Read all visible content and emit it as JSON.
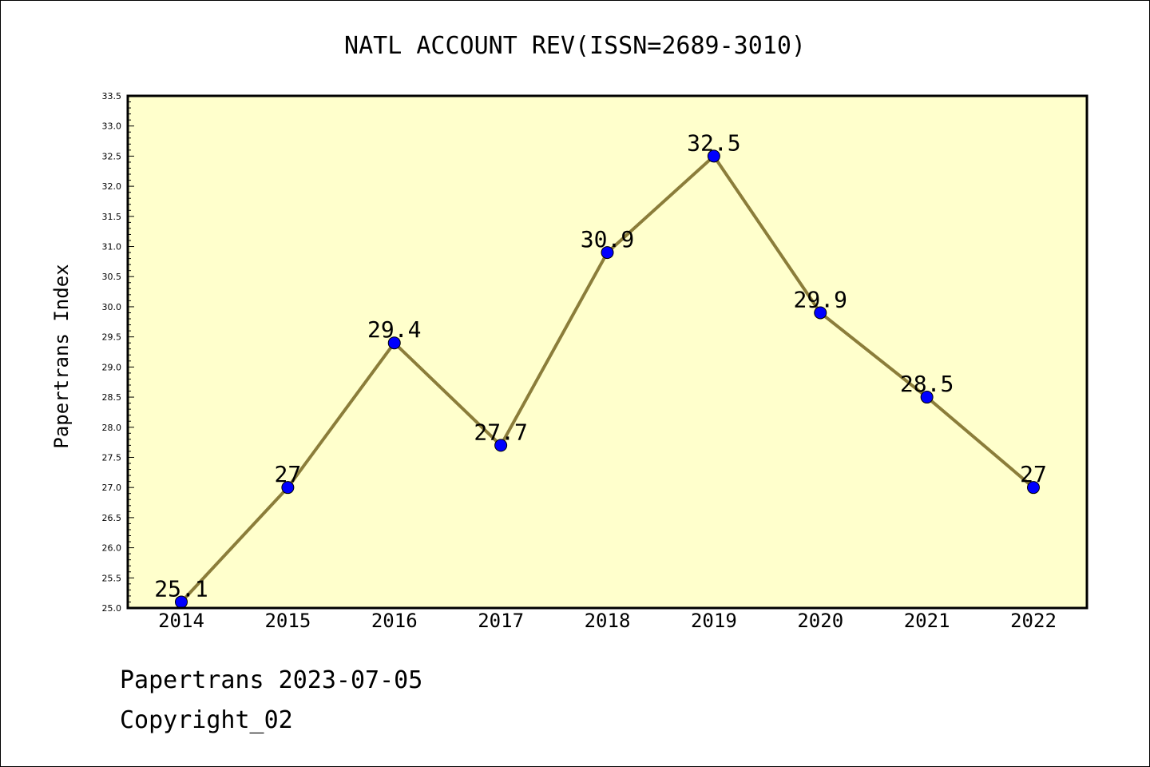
{
  "chart_data": {
    "type": "line",
    "title": "NATL ACCOUNT REV(ISSN=2689-3010)",
    "ylabel": "Papertrans Index",
    "xlabel": "",
    "categories": [
      "2014",
      "2015",
      "2016",
      "2017",
      "2018",
      "2019",
      "2020",
      "2021",
      "2022"
    ],
    "values": [
      25.1,
      27,
      29.4,
      27.7,
      30.9,
      32.5,
      29.9,
      28.5,
      27
    ],
    "data_labels": [
      "25.1",
      "27",
      "29.4",
      "27.7",
      "30.9",
      "32.5",
      "29.9",
      "28.5",
      "27"
    ],
    "ylim": [
      25.0,
      33.5
    ],
    "yticks": [
      "25.0",
      "25.5",
      "26.0",
      "26.5",
      "27.0",
      "27.5",
      "28.0",
      "28.5",
      "29.0",
      "29.5",
      "30.0",
      "30.5",
      "31.0",
      "31.5",
      "32.0",
      "32.5",
      "33.0",
      "33.5"
    ],
    "grid": false,
    "colors": {
      "plot_bg": "#ffffcc",
      "line": "#8b7d3a",
      "marker": "#0000ff"
    }
  },
  "footer": {
    "line1": "Papertrans 2023-07-05",
    "line2": "Copyright_02"
  }
}
